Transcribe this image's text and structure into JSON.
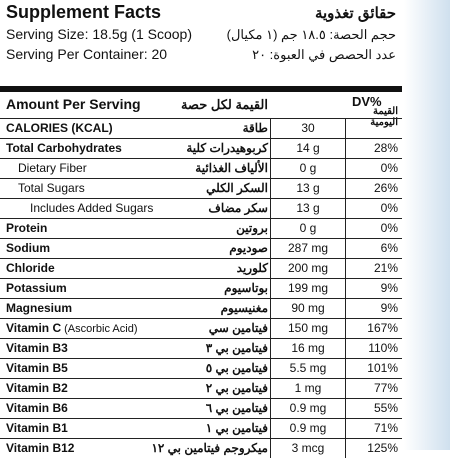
{
  "header": {
    "title": "Supplement Facts",
    "title_ar": "حقائق تغذوية",
    "serving_size": "Serving Size: 18.5g (1 Scoop)",
    "serving_size_ar": "حجم الحصة: ١٨.٥ جم (١ مكيال)",
    "servings": "Serving Per Container: 20",
    "servings_ar": "عدد الحصص في العبوة: ٢٠"
  },
  "table": {
    "columns": {
      "amount": "Amount Per Serving",
      "amount_ar": "القيمة لكل حصة",
      "dv": "DV%",
      "dv_ar": "القيمة اليومية"
    },
    "rows": [
      {
        "name": "CALORIES (KCAL)",
        "name_ar": "طاقة",
        "amount": "30"
      },
      {
        "name": "Total Carbohydrates",
        "name_ar": "كربوهيدرات كلية",
        "amount": "14 g",
        "dv": "28%"
      },
      {
        "name": "Dietary Fiber",
        "name_ar": "الألياف الغذائية",
        "amount": "0 g",
        "dv": "0%",
        "indent": 1
      },
      {
        "name": "Total Sugars",
        "name_ar": "السكر الكلي",
        "amount": "13 g",
        "dv": "26%",
        "indent": 1
      },
      {
        "name": "Includes Added Sugars",
        "name_ar": "سكر مضاف",
        "amount": "13 g",
        "dv": "0%",
        "indent": 2
      },
      {
        "name": "Protein",
        "name_ar": "بروتين",
        "amount": "0 g",
        "dv": "0%"
      },
      {
        "name": "Sodium",
        "name_ar": "صوديوم",
        "amount": "287 mg",
        "dv": "6%"
      },
      {
        "name": "Chloride",
        "name_ar": "كلوريد",
        "amount": "200 mg",
        "dv": "21%"
      },
      {
        "name": "Potassium",
        "name_ar": "بوتاسيوم",
        "amount": "199 mg",
        "dv": "9%"
      },
      {
        "name": "Magnesium",
        "name_ar": "مغنيسيوم",
        "amount": "90 mg",
        "dv": "9%"
      },
      {
        "name": "Vitamin C",
        "note": "(Ascorbic Acid)",
        "name_ar": "فيتامين سي",
        "amount": "150 mg",
        "dv": "167%"
      },
      {
        "name": "Vitamin B3",
        "name_ar": "فيتامين بي ٣",
        "amount": "16 mg",
        "dv": "110%"
      },
      {
        "name": "Vitamin B5",
        "name_ar": "فيتامين بي ٥",
        "amount": "5.5 mg",
        "dv": "101%"
      },
      {
        "name": "Vitamin B2",
        "name_ar": "فيتامين بي ٢",
        "amount": "1 mg",
        "dv": "77%"
      },
      {
        "name": "Vitamin B6",
        "name_ar": "فيتامين بي ٦",
        "amount": "0.9 mg",
        "dv": "55%"
      },
      {
        "name": "Vitamin B1",
        "name_ar": "فيتامين بي ١",
        "amount": "0.9 mg",
        "dv": "71%"
      },
      {
        "name": "Vitamin B12",
        "name_ar": "ميكروجم فيتامين بي ١٢",
        "amount": "3 mcg",
        "dv": "125%"
      }
    ]
  }
}
